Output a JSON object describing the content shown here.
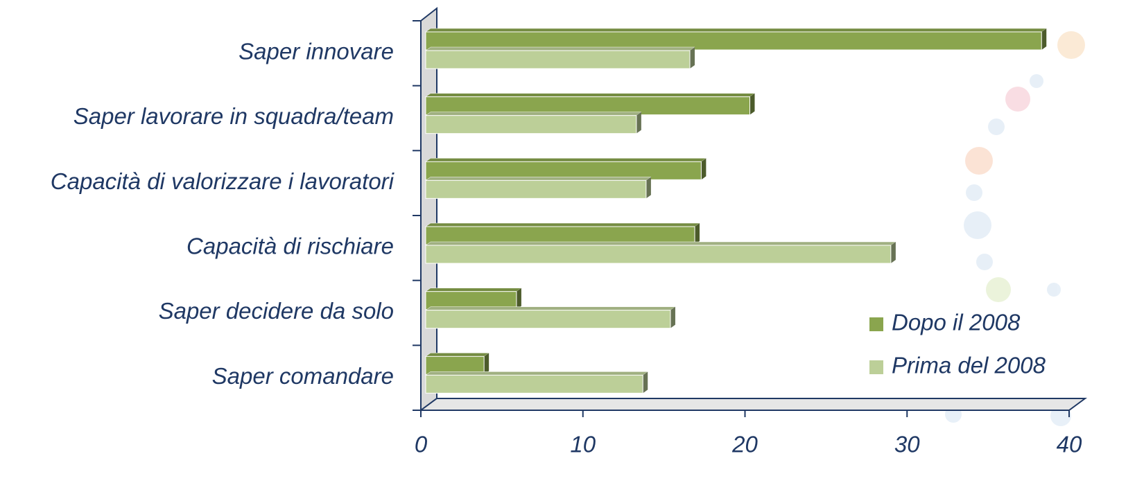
{
  "chart_data": {
    "type": "hbar3d",
    "categories": [
      "Saper innovare",
      "Saper lavorare in squadra/team",
      "Capacità di valorizzare i lavoratori",
      "Capacità di rischiare",
      "Saper decidere da solo",
      "Saper comandare"
    ],
    "series": [
      {
        "name": "Dopo il 2008",
        "color": "#8aa54e",
        "values": [
          38,
          20,
          17,
          16.6,
          5.6,
          3.6
        ]
      },
      {
        "name": "Prima del 2008",
        "color": "#bccf98",
        "values": [
          16.3,
          13,
          13.6,
          28.7,
          15.1,
          13.4
        ]
      }
    ],
    "xlim": [
      0,
      40
    ],
    "xticks": [
      0,
      10,
      20,
      30,
      40
    ],
    "legend": "lower-right"
  }
}
